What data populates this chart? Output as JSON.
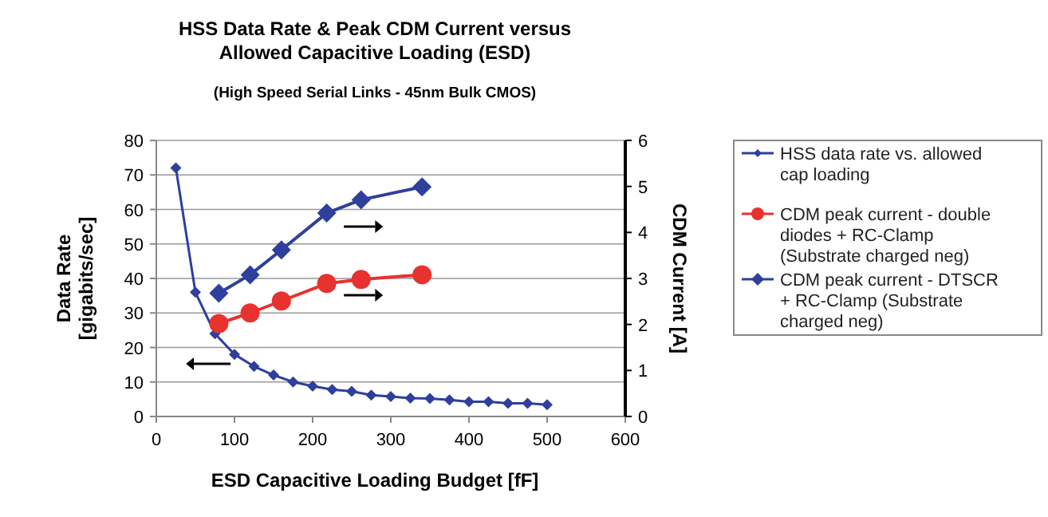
{
  "chart_data": {
    "type": "line",
    "title": "HSS Data Rate & Peak CDM Current versus Allowed Capacitive Loading (ESD)",
    "subtitle": "(High Speed Serial Links - 45nm Bulk CMOS)",
    "xlabel": "ESD Capacitive Loading Budget [fF]",
    "ylabel": "Data Rate [gigabits/sec]",
    "y2label": "CDM Current [A]",
    "xlim": [
      0,
      600
    ],
    "xticks": [
      0,
      100,
      200,
      300,
      400,
      500,
      600
    ],
    "ylim": [
      0,
      80
    ],
    "yticks": [
      0,
      10,
      20,
      30,
      40,
      50,
      60,
      70,
      80
    ],
    "y2lim": [
      0,
      6
    ],
    "y2ticks": [
      0,
      1,
      2,
      3,
      4,
      5,
      6
    ],
    "grid": "y",
    "legend": "right",
    "line_style": "solid",
    "series": [
      {
        "name": "HSS data rate vs. allowed cap loading",
        "color": "#2e3f9e",
        "marker": "diamond",
        "x": [
          25,
          50,
          75,
          100,
          125,
          150,
          175,
          200,
          225,
          250,
          275,
          300,
          325,
          350,
          375,
          400,
          425,
          450,
          475,
          500
        ],
        "values": [
          72,
          36,
          24,
          18,
          14.5,
          12,
          10,
          8.8,
          7.8,
          7.3,
          6.2,
          5.8,
          5.3,
          5.2,
          4.8,
          4.3,
          4.3,
          3.8,
          3.8,
          3.4
        ]
      },
      {
        "name": "CDM peak current - double diodes + RC-Clamp (Substrate charged neg)",
        "color": "#e8322f",
        "marker": "circle",
        "axis": "y2",
        "x": [
          80,
          120,
          160,
          218,
          262,
          340
        ],
        "values": [
          2.02,
          2.25,
          2.51,
          2.89,
          2.98,
          3.08
        ]
      },
      {
        "name": "CDM peak current - DTSCR + RC-Clamp (Substrate charged neg)",
        "color": "#2e3f9e",
        "marker": "diamond",
        "axis": "y2",
        "x": [
          80,
          120,
          160,
          218,
          262,
          340
        ],
        "values": [
          2.68,
          3.08,
          3.62,
          4.42,
          4.71,
          4.99
        ]
      }
    ]
  }
}
